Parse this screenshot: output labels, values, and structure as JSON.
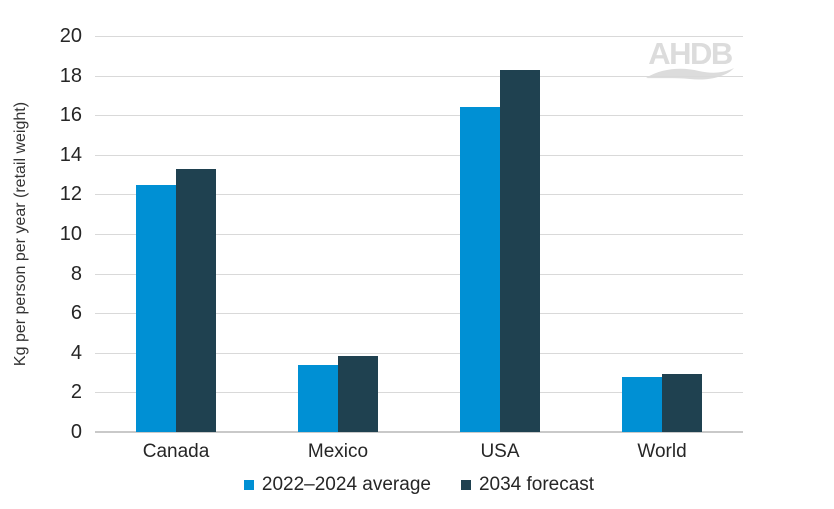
{
  "watermark": {
    "text": "AHDB"
  },
  "chart_data": {
    "type": "bar",
    "title": "",
    "categories": [
      "Canada",
      "Mexico",
      "USA",
      "World"
    ],
    "series": [
      {
        "name": "2022–2024 average",
        "color": "#0090D4",
        "values": [
          12.5,
          3.4,
          16.4,
          2.8
        ]
      },
      {
        "name": "2034 forecast",
        "color": "#1F4150",
        "values": [
          13.3,
          3.85,
          18.3,
          2.95
        ]
      }
    ],
    "xlabel": "",
    "ylabel": "Kg per person per year (retail weight)",
    "ylim": [
      0,
      20
    ],
    "ytick_step": 2,
    "grid": "horizontal-gridlines",
    "legend_position": "bottom"
  }
}
